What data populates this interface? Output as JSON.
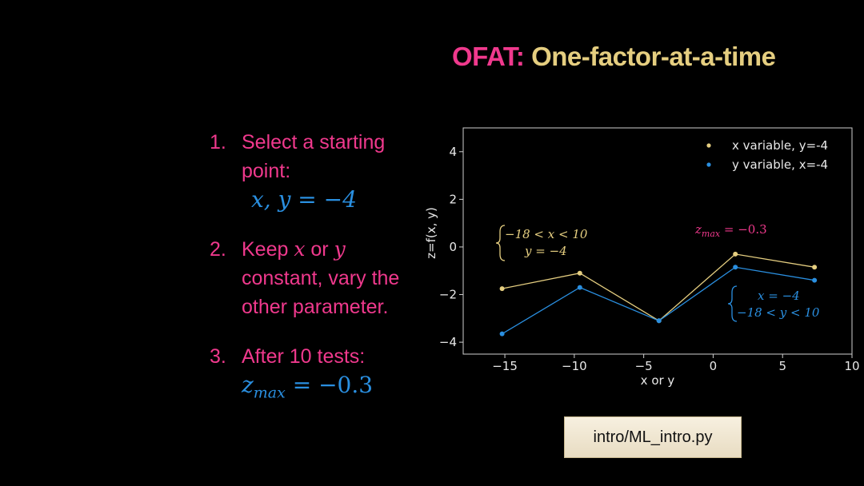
{
  "title": {
    "acronym": "OFAT:",
    "rest": "One-factor-at-a-time"
  },
  "steps": {
    "s1_num": "1.",
    "s1_line1": "Select a starting",
    "s1_line2": "point:",
    "s1_math": "x, y = −4",
    "s2_num": "2.",
    "s2_keep": "Keep",
    "s2_x": "x",
    "s2_or": "or",
    "s2_y": "y",
    "s2_line2": "constant, vary the",
    "s2_line3": "other parameter.",
    "s3_num": "3.",
    "s3_line1": "After 10 tests:",
    "s3_math_base": "z",
    "s3_math_sub": "max",
    "s3_math_rest": " = −0.3"
  },
  "code_label": "intro/ML_intro.py",
  "colors": {
    "pink": "#f0398d",
    "gold": "#e5ce80",
    "blue": "#2a8fe0"
  },
  "chart_data": {
    "type": "line",
    "xlabel": "x or y",
    "ylabel": "z=f(x, y)",
    "xlim": [
      -18,
      10
    ],
    "ylim": [
      -4.5,
      5
    ],
    "xticks": [
      -15,
      -10,
      -5,
      0,
      5,
      10
    ],
    "yticks": [
      -4,
      -2,
      0,
      2,
      4
    ],
    "xtick_labels": [
      "−15",
      "−10",
      "−5",
      "0",
      "5",
      "10"
    ],
    "ytick_labels": [
      "−4",
      "−2",
      "0",
      "2",
      "4"
    ],
    "legend_position": "top-right",
    "series": [
      {
        "name": "x variable, y=-4",
        "color": "#e5ce80",
        "x": [
          -15.2,
          -9.6,
          -3.9,
          1.6,
          7.3
        ],
        "y": [
          -1.75,
          -1.1,
          -3.1,
          -0.3,
          -0.85
        ]
      },
      {
        "name": "y variable, x=-4",
        "color": "#2a8fe0",
        "x": [
          -15.2,
          -9.6,
          -3.9,
          1.6,
          7.3
        ],
        "y": [
          -3.65,
          -1.7,
          -3.1,
          -0.85,
          -1.4
        ]
      }
    ],
    "annotations": {
      "gold_line1": "−18 < x < 10",
      "gold_line2": "y = −4",
      "zmax_base": "z",
      "zmax_sub": "max",
      "zmax_rest": " = −0.3",
      "blue_line1": "x = −4",
      "blue_line2": "−18 < y < 10"
    }
  }
}
